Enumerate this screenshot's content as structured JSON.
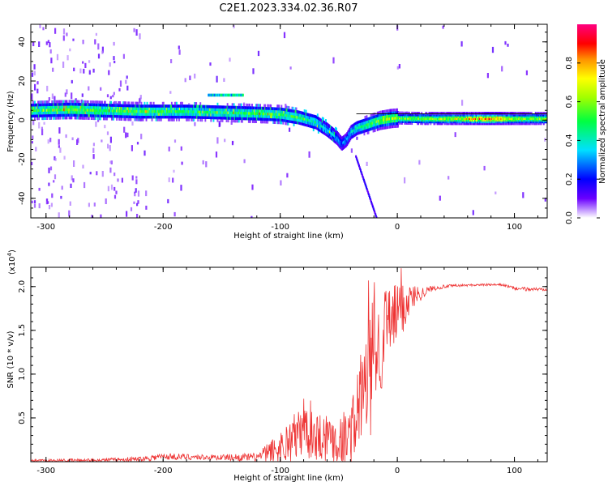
{
  "title": "C2E1.2023.334.02.36.R07",
  "colors": {
    "snr_line": "#ee3333",
    "axis": "#000000"
  },
  "chart_data": [
    {
      "type": "heatmap",
      "xlabel": "Height of straight line (km)",
      "ylabel": "Frequency (Hz)",
      "xlim": [
        -313,
        128
      ],
      "ylim": [
        -50,
        49
      ],
      "x_ticks": [
        -300,
        -200,
        -100,
        0,
        100
      ],
      "x_tick_labels": [
        "-300",
        "-200",
        "-100",
        "0",
        "100"
      ],
      "y_ticks": [
        -40,
        -20,
        0,
        20,
        40
      ],
      "y_tick_labels": [
        "-40",
        "-20",
        "0",
        "20",
        "40"
      ],
      "colorbar": {
        "label": "Normalized spectral amplitude",
        "range": [
          0,
          1
        ],
        "ticks": [
          0,
          0.2,
          0.4,
          0.6,
          0.8
        ],
        "tick_labels": [
          "0.0",
          "0.2",
          "0.4",
          "0.6",
          "0.8"
        ]
      },
      "ridge": {
        "x": [
          -313,
          -280,
          -250,
          -220,
          -180,
          -150,
          -120,
          -100,
          -85,
          -70,
          -60,
          -52,
          -48,
          -44,
          -40,
          -35,
          -30,
          -25,
          -20,
          -15,
          -10,
          -5,
          0,
          20,
          40,
          60,
          80,
          100,
          128
        ],
        "frequency": [
          5,
          5.5,
          5,
          4.5,
          4.5,
          4,
          3.5,
          3,
          1.5,
          -1,
          -5,
          -9,
          -12,
          -10,
          -6,
          -4,
          -3,
          -2,
          -1,
          0,
          0.5,
          1,
          1.2,
          1,
          1,
          1,
          1,
          1,
          1
        ],
        "amplitude": [
          0.45,
          0.55,
          0.5,
          0.5,
          0.45,
          0.45,
          0.5,
          0.5,
          0.45,
          0.4,
          0.35,
          0.3,
          0.25,
          0.3,
          0.35,
          0.4,
          0.45,
          0.5,
          0.55,
          0.6,
          0.65,
          0.6,
          0.55,
          0.55,
          0.6,
          0.7,
          0.85,
          0.6,
          0.55
        ]
      }
    },
    {
      "type": "line",
      "xlabel": "Height of straight line (km)",
      "ylabel": "SNR (10 * v/v)",
      "y_exponent_label": "(x10",
      "y_exponent_power": "4",
      "y_exponent_close": ")",
      "xlim": [
        -313,
        128
      ],
      "ylim": [
        0,
        2.22
      ],
      "x_ticks": [
        -300,
        -200,
        -100,
        0,
        100
      ],
      "x_tick_labels": [
        "-300",
        "-200",
        "-100",
        "0",
        "100"
      ],
      "y_ticks": [
        0.5,
        1.0,
        1.5,
        2.0
      ],
      "y_tick_labels": [
        "0.5",
        "1.0",
        "1.5",
        "2.0"
      ],
      "series": [
        {
          "x": [
            -313,
            -250,
            -220,
            -200,
            -160,
            -120,
            -100,
            -90,
            -80,
            -75,
            -70,
            -60,
            -50,
            -40,
            -35,
            -30,
            -25,
            -20,
            -15,
            -10,
            -5,
            0,
            5,
            10,
            15,
            20,
            25,
            30,
            40,
            50,
            70,
            90,
            100,
            110,
            128
          ],
          "base": [
            0.01,
            0.02,
            0.03,
            0.06,
            0.05,
            0.05,
            0.15,
            0.25,
            0.35,
            0.38,
            0.3,
            0.3,
            0.25,
            0.3,
            0.5,
            0.8,
            0.9,
            1.1,
            1.3,
            1.5,
            1.6,
            1.7,
            1.75,
            1.85,
            1.9,
            1.92,
            1.95,
            1.98,
            2.0,
            2.01,
            2.02,
            2.02,
            1.98,
            1.97,
            1.97
          ],
          "noise": [
            0.015,
            0.02,
            0.03,
            0.04,
            0.03,
            0.05,
            0.2,
            0.3,
            0.3,
            0.35,
            0.3,
            0.3,
            0.3,
            0.35,
            0.5,
            0.6,
            0.7,
            0.8,
            0.6,
            0.5,
            0.4,
            0.35,
            0.3,
            0.2,
            0.12,
            0.08,
            0.05,
            0.03,
            0.02,
            0.015,
            0.012,
            0.012,
            0.02,
            0.02,
            0.02
          ]
        }
      ],
      "spikes": [
        {
          "x": -25,
          "y": 2.07
        },
        {
          "x": -20,
          "y": 2.05
        },
        {
          "x": -10,
          "y": 1.95
        },
        {
          "x": 3,
          "y": 2.21
        },
        {
          "x": -80,
          "y": 0.72
        }
      ]
    }
  ]
}
